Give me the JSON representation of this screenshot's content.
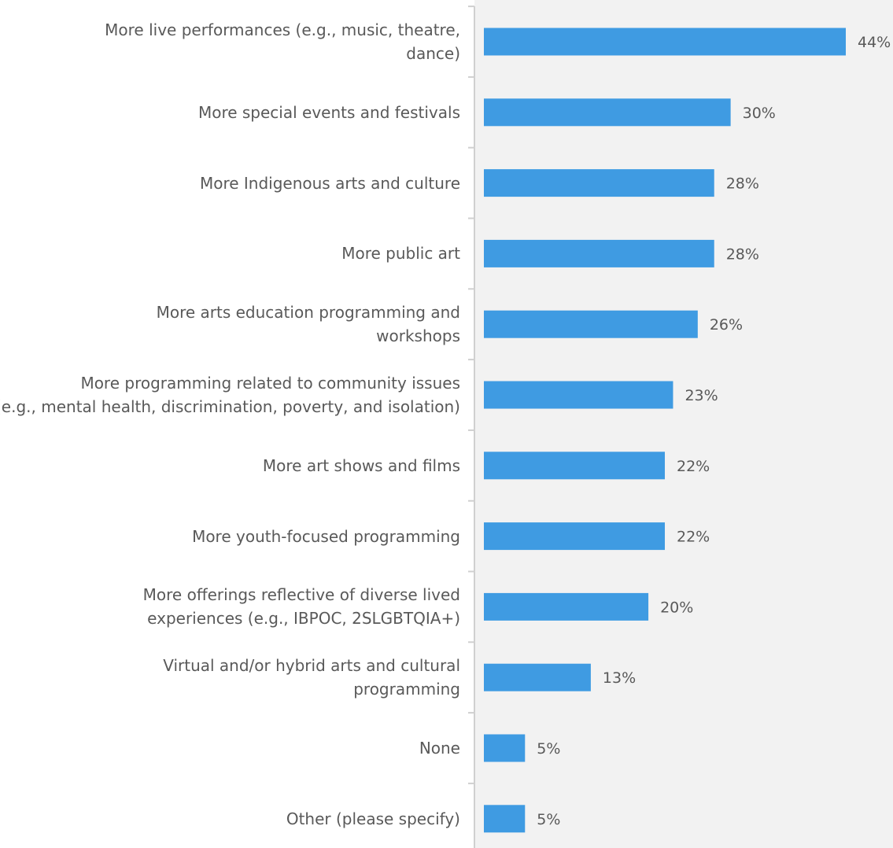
{
  "chart_data": {
    "type": "bar",
    "orientation": "horizontal",
    "categories": [
      [
        "More live performances (e.g., music, theatre,",
        "dance)"
      ],
      [
        "More special events and festivals"
      ],
      [
        "More Indigenous arts and culture"
      ],
      [
        "More public art"
      ],
      [
        "More arts education programming and",
        "workshops"
      ],
      [
        "More programming related to community issues",
        "(e.g., mental health, discrimination, poverty, and isolation)"
      ],
      [
        "More art shows and films"
      ],
      [
        "More youth-focused programming"
      ],
      [
        "More offerings reflective of diverse lived",
        "experiences (e.g., IBPOC, 2SLGBTQIA+)"
      ],
      [
        "Virtual and/or hybrid arts and cultural",
        "programming"
      ],
      [
        "None"
      ],
      [
        "Other (please specify)"
      ]
    ],
    "values": [
      44,
      30,
      28,
      28,
      26,
      23,
      22,
      22,
      20,
      13,
      5,
      5
    ],
    "value_labels": [
      "44%",
      "30%",
      "28%",
      "28%",
      "26%",
      "23%",
      "22%",
      "22%",
      "20%",
      "13%",
      "5%",
      "5%"
    ],
    "xlim": [
      0,
      50
    ],
    "grid": false,
    "legend": "none",
    "colors": {
      "bar": "#3f9be2",
      "plot_background": "#f2f2f2",
      "axis": "#d0d0d0",
      "label_text": "#595959"
    }
  }
}
